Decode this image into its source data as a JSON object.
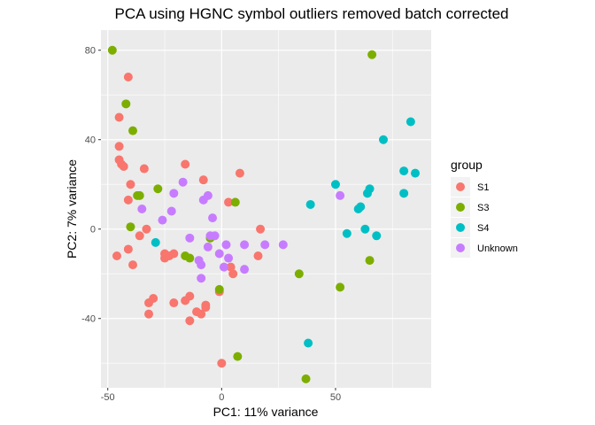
{
  "chart_data": {
    "type": "scatter",
    "title": "PCA using HGNC symbol outliers removed batch corrected",
    "xlabel": "PC1: 11% variance",
    "ylabel": "PC2: 7% variance",
    "xlim": [
      -53,
      92
    ],
    "ylim": [
      -71,
      89
    ],
    "xticks": [
      -50,
      0,
      50
    ],
    "yticks": [
      -40,
      0,
      40,
      80
    ],
    "xtick_labels": [
      "-50",
      "0",
      "50"
    ],
    "ytick_labels": [
      "-40",
      "0",
      "40",
      "80"
    ],
    "grid": true,
    "legend": {
      "title": "group",
      "position": "right"
    },
    "series": [
      {
        "name": "S1",
        "color": "#F8766D",
        "points": [
          [
            -41,
            68
          ],
          [
            -45,
            50
          ],
          [
            -45,
            37
          ],
          [
            -45,
            31
          ],
          [
            -44,
            29
          ],
          [
            -43,
            28
          ],
          [
            -34,
            27
          ],
          [
            -40,
            20
          ],
          [
            -41,
            13
          ],
          [
            -33,
            0
          ],
          [
            -36,
            -3
          ],
          [
            -41,
            -9
          ],
          [
            -46,
            -12
          ],
          [
            -39,
            -16
          ],
          [
            -16,
            29
          ],
          [
            -8,
            22
          ],
          [
            8,
            25
          ],
          [
            -23,
            -12
          ],
          [
            -25,
            -13
          ],
          [
            -25,
            -11
          ],
          [
            -21,
            -11
          ],
          [
            3,
            12
          ],
          [
            4,
            -17
          ],
          [
            5,
            -20
          ],
          [
            16,
            -12
          ],
          [
            17,
            0
          ],
          [
            -30,
            -31
          ],
          [
            -32,
            -33
          ],
          [
            -32,
            -38
          ],
          [
            -21,
            -33
          ],
          [
            -16,
            -32
          ],
          [
            -14,
            -30
          ],
          [
            -11,
            -37
          ],
          [
            -9,
            -38
          ],
          [
            -7,
            -34
          ],
          [
            -7,
            -35
          ],
          [
            -14,
            -41
          ],
          [
            -1,
            -28
          ],
          [
            0,
            -60
          ]
        ]
      },
      {
        "name": "S3",
        "color": "#7CAE00",
        "points": [
          [
            -48,
            80
          ],
          [
            -42,
            56
          ],
          [
            -39,
            44
          ],
          [
            -37,
            15
          ],
          [
            -36,
            15
          ],
          [
            -28,
            18
          ],
          [
            -40,
            1
          ],
          [
            -16,
            -12
          ],
          [
            -14,
            -13
          ],
          [
            -5,
            -4
          ],
          [
            -1,
            -27
          ],
          [
            6,
            12
          ],
          [
            66,
            78
          ],
          [
            34,
            -20
          ],
          [
            52,
            -26
          ],
          [
            65,
            -14
          ],
          [
            7,
            -57
          ],
          [
            37,
            -67
          ]
        ]
      },
      {
        "name": "S4",
        "color": "#00BFC4",
        "points": [
          [
            83,
            48
          ],
          [
            71,
            40
          ],
          [
            80,
            26
          ],
          [
            85,
            25
          ],
          [
            50,
            20
          ],
          [
            65,
            18
          ],
          [
            64,
            16
          ],
          [
            80,
            16
          ],
          [
            39,
            11
          ],
          [
            61,
            10
          ],
          [
            60,
            9
          ],
          [
            63,
            0
          ],
          [
            55,
            -2
          ],
          [
            68,
            -3
          ],
          [
            -29,
            -6
          ],
          [
            38,
            -51
          ]
        ]
      },
      {
        "name": "Unknown",
        "color": "#C77CFF",
        "points": [
          [
            -17,
            21
          ],
          [
            -21,
            16
          ],
          [
            -6,
            15
          ],
          [
            -8,
            13
          ],
          [
            -35,
            9
          ],
          [
            -22,
            8
          ],
          [
            -26,
            4
          ],
          [
            -4,
            5
          ],
          [
            -14,
            -4
          ],
          [
            -5,
            -3
          ],
          [
            -3,
            -3
          ],
          [
            -6,
            -8
          ],
          [
            -1,
            -11
          ],
          [
            2,
            -7
          ],
          [
            10,
            -7
          ],
          [
            19,
            -7
          ],
          [
            27,
            -7
          ],
          [
            -10,
            -14
          ],
          [
            -9,
            -16
          ],
          [
            1,
            -17
          ],
          [
            10,
            -18
          ],
          [
            3,
            -13
          ],
          [
            -9,
            -22
          ],
          [
            52,
            15
          ]
        ]
      }
    ]
  }
}
